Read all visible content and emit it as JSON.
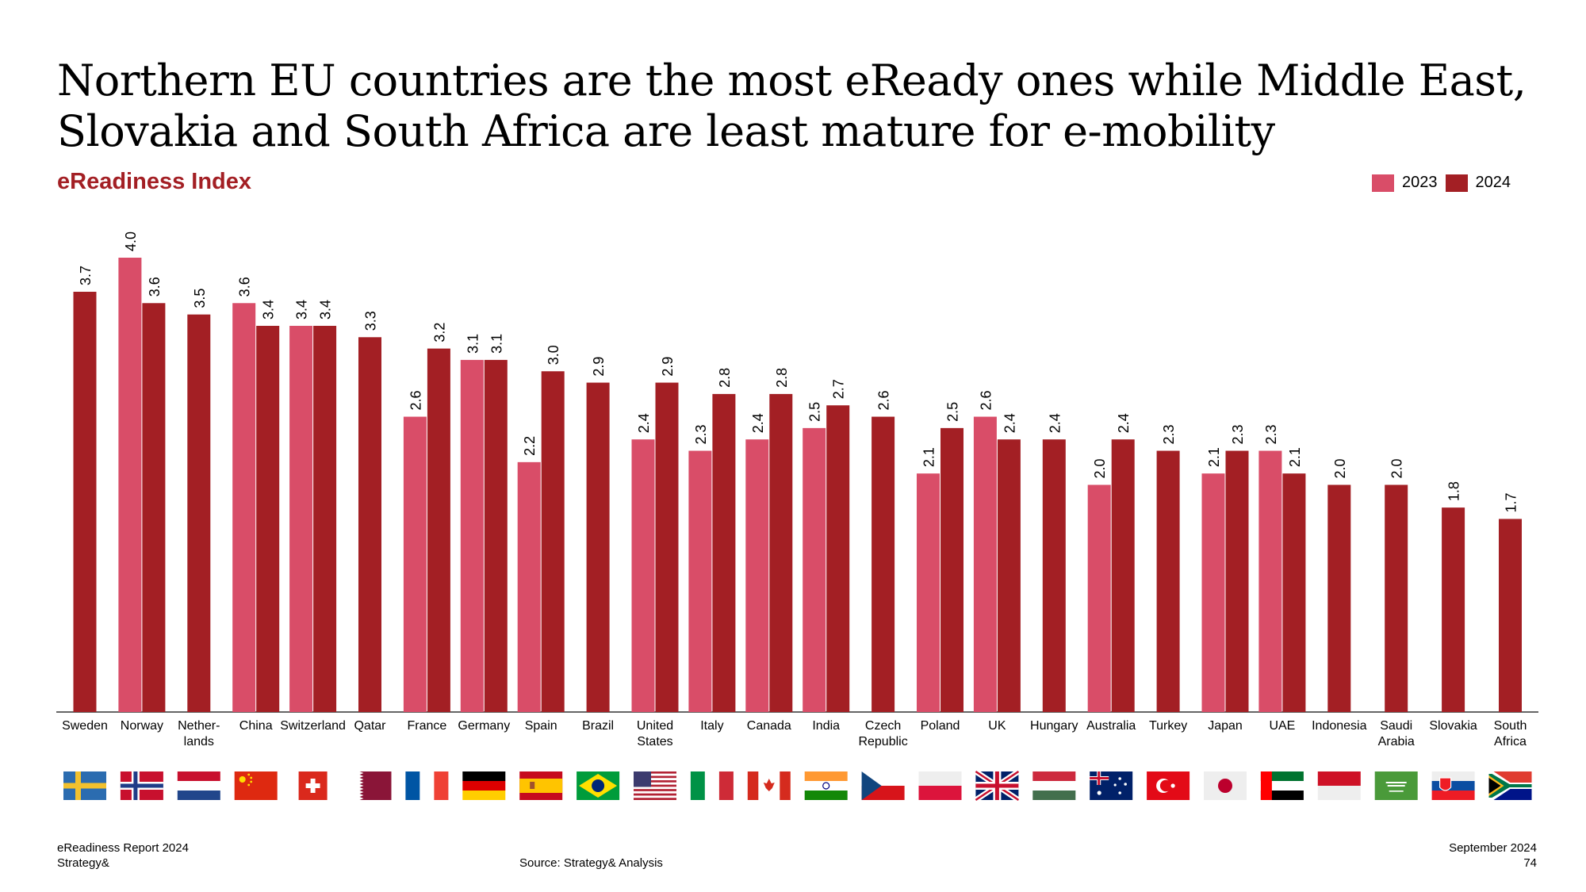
{
  "page": {
    "title_lines": [
      "Northern EU countries are the most eReady ones while Middle East,",
      "Slovakia and South Africa are least mature for e-mobility"
    ],
    "subtitle": "eReadiness Index"
  },
  "footer": {
    "report": "eReadiness Report 2024",
    "brand": "Strategy&",
    "source": "Source: Strategy& Analysis",
    "date": "September 2024",
    "page_number": "74"
  },
  "colors": {
    "s2023": "#d94d68",
    "s2024": "#a31f24",
    "title": "#a31f24"
  },
  "chart_data": {
    "type": "bar",
    "title": "eReadiness Index",
    "legend_position": "top-right",
    "grid": false,
    "ylim": [
      0,
      4.0
    ],
    "categories": [
      {
        "label": [
          "Sweden"
        ],
        "flag": "sweden-flag"
      },
      {
        "label": [
          "Norway"
        ],
        "flag": "norway-flag"
      },
      {
        "label": [
          "Nether-",
          "lands"
        ],
        "flag": "netherlands-flag"
      },
      {
        "label": [
          "China"
        ],
        "flag": "china-flag"
      },
      {
        "label": [
          "Switzerland"
        ],
        "flag": "switzerland-flag"
      },
      {
        "label": [
          "Qatar"
        ],
        "flag": "qatar-flag"
      },
      {
        "label": [
          "France"
        ],
        "flag": "france-flag"
      },
      {
        "label": [
          "Germany"
        ],
        "flag": "germany-flag"
      },
      {
        "label": [
          "Spain"
        ],
        "flag": "spain-flag"
      },
      {
        "label": [
          "Brazil"
        ],
        "flag": "brazil-flag"
      },
      {
        "label": [
          "United",
          "States"
        ],
        "flag": "usa-flag"
      },
      {
        "label": [
          "Italy"
        ],
        "flag": "italy-flag"
      },
      {
        "label": [
          "Canada"
        ],
        "flag": "canada-flag"
      },
      {
        "label": [
          "India"
        ],
        "flag": "india-flag"
      },
      {
        "label": [
          "Czech",
          "Republic"
        ],
        "flag": "czech-flag"
      },
      {
        "label": [
          "Poland"
        ],
        "flag": "poland-flag"
      },
      {
        "label": [
          "UK"
        ],
        "flag": "uk-flag"
      },
      {
        "label": [
          "Hungary"
        ],
        "flag": "hungary-flag"
      },
      {
        "label": [
          "Australia"
        ],
        "flag": "australia-flag"
      },
      {
        "label": [
          "Turkey"
        ],
        "flag": "turkey-flag"
      },
      {
        "label": [
          "Japan"
        ],
        "flag": "japan-flag"
      },
      {
        "label": [
          "UAE"
        ],
        "flag": "uae-flag"
      },
      {
        "label": [
          "Indonesia"
        ],
        "flag": "indonesia-flag"
      },
      {
        "label": [
          "Saudi",
          "Arabia"
        ],
        "flag": "saudi-arabia-flag"
      },
      {
        "label": [
          "Slovakia"
        ],
        "flag": "slovakia-flag"
      },
      {
        "label": [
          "South",
          "Africa"
        ],
        "flag": "south-africa-flag"
      }
    ],
    "series": [
      {
        "name": "2023",
        "color": "#d94d68",
        "values": [
          null,
          4.0,
          null,
          3.6,
          3.4,
          null,
          2.6,
          3.1,
          2.2,
          null,
          2.4,
          2.3,
          2.4,
          2.5,
          null,
          2.1,
          2.6,
          null,
          2.0,
          null,
          2.1,
          2.3,
          null,
          null,
          null,
          null
        ],
        "labels": [
          null,
          "4.0",
          null,
          "3.6",
          "3.4",
          null,
          "2.6",
          "3.1",
          "2.2",
          null,
          "2.4",
          "2.3",
          "2.4",
          "2.5",
          null,
          "2.1",
          "2.6",
          null,
          "2.0",
          null,
          "2.1",
          "2.3",
          null,
          null,
          null,
          null
        ]
      },
      {
        "name": "2024",
        "color": "#a31f24",
        "values": [
          3.7,
          3.6,
          3.5,
          3.4,
          3.4,
          3.3,
          3.2,
          3.1,
          3.0,
          2.9,
          2.9,
          2.8,
          2.8,
          2.7,
          2.6,
          2.5,
          2.4,
          2.4,
          2.4,
          2.3,
          2.3,
          2.1,
          2.0,
          2.0,
          1.8,
          1.7
        ],
        "labels": [
          "3.7",
          "3.6",
          "3.5",
          "3.4",
          "3.4",
          "3.3",
          "3.2",
          "3.1",
          "3.0",
          "2.9",
          "2.9",
          "2.8",
          "2.8",
          "2.7",
          "2.6",
          "2.5",
          "2.4",
          "2.4",
          "2.4",
          "2.3",
          "2.3",
          "2.1",
          "2.0",
          "2.0",
          "1.8",
          "1.7"
        ]
      }
    ]
  }
}
